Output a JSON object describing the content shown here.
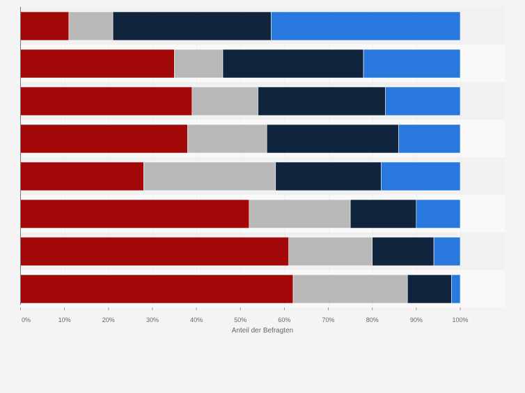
{
  "chart_data": {
    "type": "bar",
    "orientation": "horizontal",
    "stacked": true,
    "title": "",
    "xlabel": "Anteil der Befragten",
    "ylabel": "",
    "xlim": [
      0,
      100
    ],
    "x_ticks": [
      0,
      10,
      20,
      30,
      40,
      50,
      60,
      70,
      80,
      90,
      100
    ],
    "x_tick_labels": [
      "0%",
      "10%",
      "20%",
      "30%",
      "40%",
      "50%",
      "60%",
      "70%",
      "80%",
      "90%",
      "100%"
    ],
    "grid": true,
    "legend": "none",
    "categories": [
      "",
      "",
      "",
      "",
      "",
      "",
      "",
      ""
    ],
    "series": [
      {
        "color": "#a30808",
        "values": [
          11,
          35,
          39,
          38,
          28,
          52,
          61,
          62
        ]
      },
      {
        "color": "#b8b8b8",
        "values": [
          10,
          11,
          15,
          18,
          30,
          23,
          19,
          26
        ]
      },
      {
        "color": "#10253d",
        "values": [
          36,
          32,
          29,
          30,
          24,
          15,
          14,
          10
        ]
      },
      {
        "color": "#2878dd",
        "values": [
          43,
          22,
          17,
          14,
          18,
          10,
          6,
          2
        ]
      }
    ]
  }
}
